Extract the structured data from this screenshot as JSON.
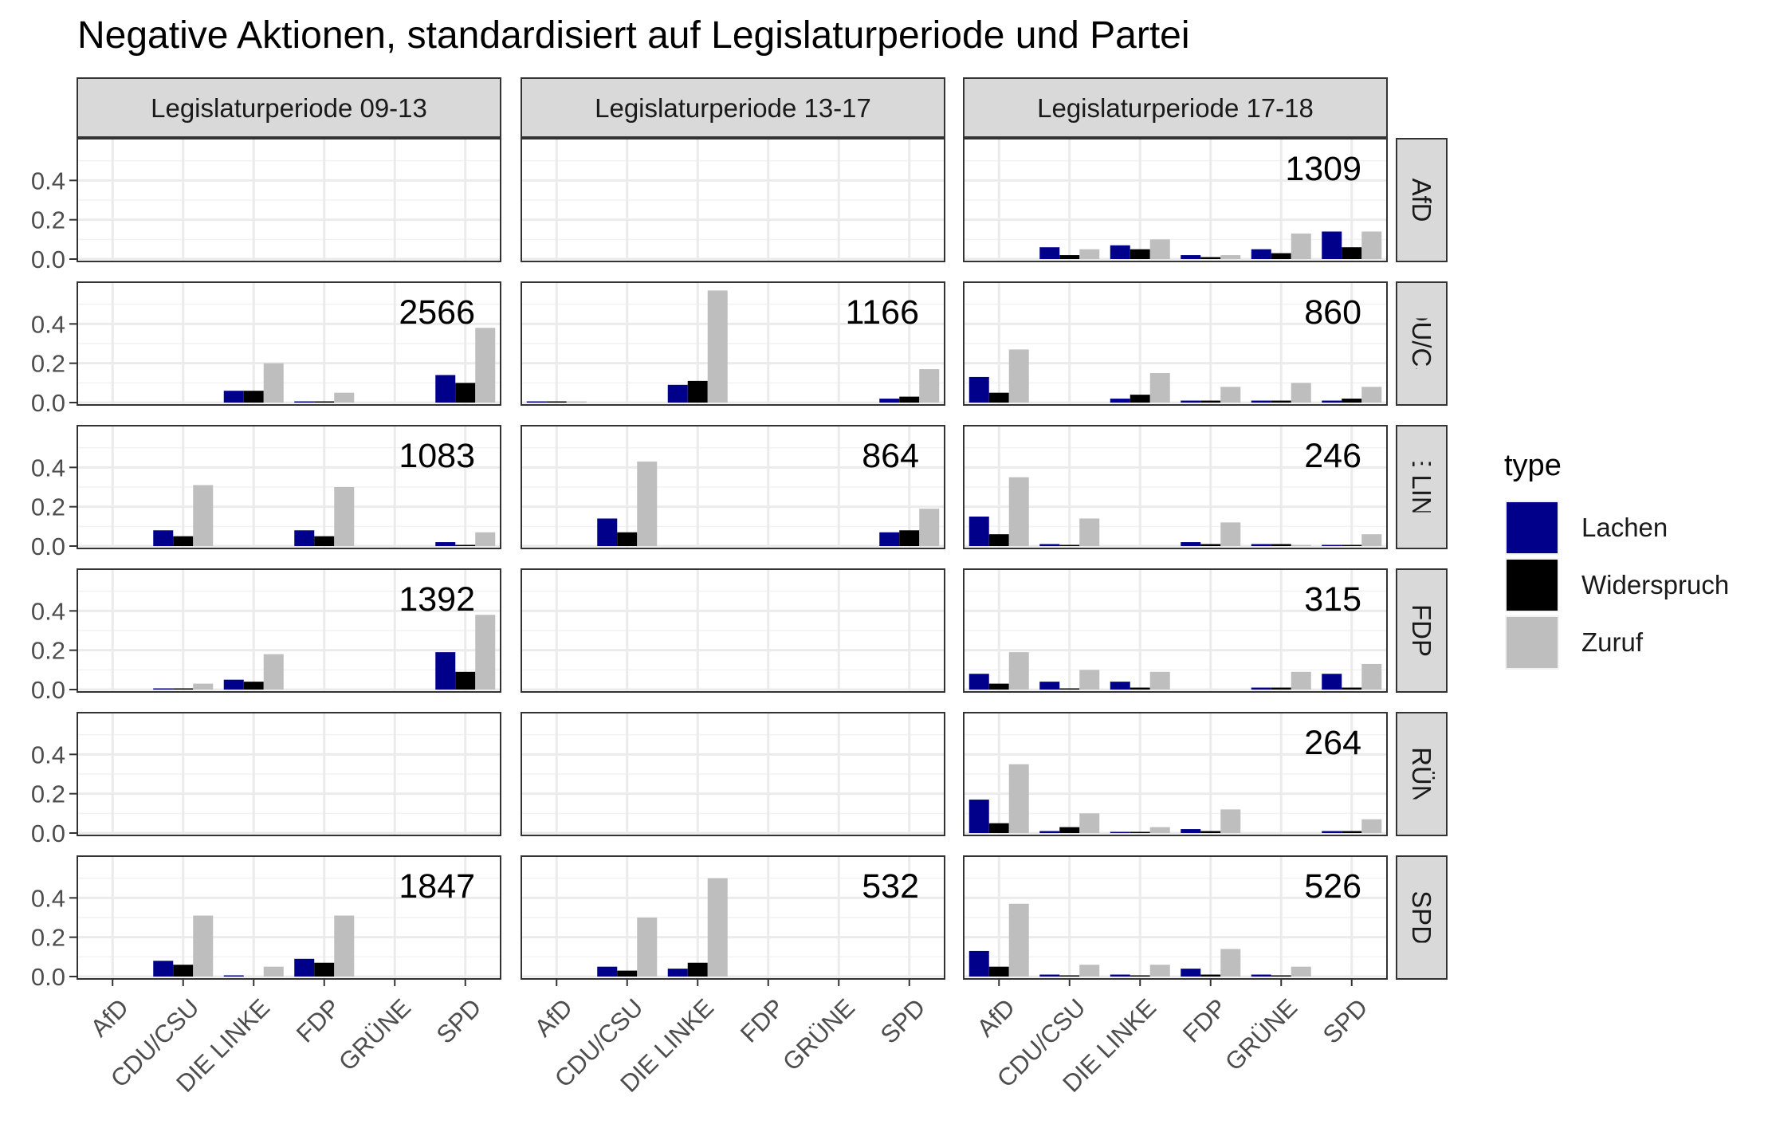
{
  "chart_data": {
    "type": "bar",
    "title": "Negative Aktionen, standardisiert auf Legislaturperiode und Partei",
    "xlabel": "",
    "ylabel": "",
    "ylim": [
      0,
      0.6
    ],
    "yticks": [
      "0.0",
      "0.2",
      "0.4"
    ],
    "grid": true,
    "legend_position": "right",
    "col_facets": [
      "Legislaturperiode 09-13",
      "Legislaturperiode 13-17",
      "Legislaturperiode 17-18"
    ],
    "row_facets": [
      "AfD",
      "CDU/CSU",
      "DIE LINKE",
      "FDP",
      "GRÜNE",
      "SPD"
    ],
    "categories": [
      "AfD",
      "CDU/CSU",
      "DIE LINKE",
      "FDP",
      "GRÜNE",
      "SPD"
    ],
    "legend": {
      "title": "type",
      "items": [
        {
          "name": "Lachen",
          "color": "#00008b"
        },
        {
          "name": "Widerspruch",
          "color": "#000000"
        },
        {
          "name": "Zuruf",
          "color": "#bebebe"
        }
      ]
    },
    "panels": [
      {
        "row": 0,
        "col": 0,
        "count": "",
        "values": [
          [
            0,
            0,
            0
          ],
          [
            0,
            0,
            0
          ],
          [
            0,
            0,
            0
          ],
          [
            0,
            0,
            0
          ],
          [
            0,
            0,
            0
          ],
          [
            0,
            0,
            0
          ]
        ]
      },
      {
        "row": 0,
        "col": 1,
        "count": "",
        "values": [
          [
            0,
            0,
            0
          ],
          [
            0,
            0,
            0
          ],
          [
            0,
            0,
            0
          ],
          [
            0,
            0,
            0
          ],
          [
            0,
            0,
            0
          ],
          [
            0,
            0,
            0
          ]
        ]
      },
      {
        "row": 0,
        "col": 2,
        "count": "1309",
        "values": [
          [
            0,
            0,
            0
          ],
          [
            0.06,
            0.02,
            0.05
          ],
          [
            0.07,
            0.05,
            0.1
          ],
          [
            0.02,
            0.01,
            0.02
          ],
          [
            0.05,
            0.03,
            0.13
          ],
          [
            0.14,
            0.06,
            0.14
          ]
        ]
      },
      {
        "row": 1,
        "col": 0,
        "count": "2566",
        "values": [
          [
            0,
            0,
            0
          ],
          [
            0,
            0,
            0
          ],
          [
            0.06,
            0.06,
            0.2
          ],
          [
            0.005,
            0.005,
            0.05
          ],
          [
            0,
            0,
            0
          ],
          [
            0.14,
            0.1,
            0.38
          ]
        ]
      },
      {
        "row": 1,
        "col": 1,
        "count": "1166",
        "values": [
          [
            0.003,
            0.003,
            0.003
          ],
          [
            0,
            0,
            0
          ],
          [
            0.09,
            0.11,
            0.57
          ],
          [
            0,
            0,
            0
          ],
          [
            0,
            0,
            0
          ],
          [
            0.02,
            0.03,
            0.17
          ]
        ]
      },
      {
        "row": 1,
        "col": 2,
        "count": "860",
        "values": [
          [
            0.13,
            0.05,
            0.27
          ],
          [
            0,
            0,
            0
          ],
          [
            0.02,
            0.04,
            0.15
          ],
          [
            0.01,
            0.01,
            0.08
          ],
          [
            0.01,
            0.01,
            0.1
          ],
          [
            0.01,
            0.02,
            0.08
          ]
        ]
      },
      {
        "row": 2,
        "col": 0,
        "count": "1083",
        "values": [
          [
            0,
            0,
            0
          ],
          [
            0.08,
            0.05,
            0.31
          ],
          [
            0,
            0,
            0
          ],
          [
            0.08,
            0.05,
            0.3
          ],
          [
            0,
            0,
            0
          ],
          [
            0.02,
            0.005,
            0.07
          ]
        ]
      },
      {
        "row": 2,
        "col": 1,
        "count": "864",
        "values": [
          [
            0,
            0,
            0
          ],
          [
            0.14,
            0.07,
            0.43
          ],
          [
            0,
            0,
            0
          ],
          [
            0,
            0,
            0
          ],
          [
            0,
            0,
            0
          ],
          [
            0.07,
            0.08,
            0.19
          ]
        ]
      },
      {
        "row": 2,
        "col": 2,
        "count": "246",
        "values": [
          [
            0.15,
            0.06,
            0.35
          ],
          [
            0.01,
            0.005,
            0.14
          ],
          [
            0,
            0,
            0
          ],
          [
            0.02,
            0.01,
            0.12
          ],
          [
            0.01,
            0.01,
            0.003
          ],
          [
            0.005,
            0.005,
            0.06
          ]
        ]
      },
      {
        "row": 3,
        "col": 0,
        "count": "1392",
        "values": [
          [
            0,
            0,
            0
          ],
          [
            0.005,
            0.005,
            0.03
          ],
          [
            0.05,
            0.04,
            0.18
          ],
          [
            0,
            0,
            0
          ],
          [
            0,
            0,
            0
          ],
          [
            0.19,
            0.09,
            0.38
          ]
        ]
      },
      {
        "row": 3,
        "col": 1,
        "count": "",
        "values": [
          [
            0,
            0,
            0
          ],
          [
            0,
            0,
            0
          ],
          [
            0,
            0,
            0
          ],
          [
            0,
            0,
            0
          ],
          [
            0,
            0,
            0
          ],
          [
            0,
            0,
            0
          ]
        ]
      },
      {
        "row": 3,
        "col": 2,
        "count": "315",
        "values": [
          [
            0.08,
            0.03,
            0.19
          ],
          [
            0.04,
            0.005,
            0.1
          ],
          [
            0.04,
            0.01,
            0.09
          ],
          [
            0,
            0,
            0
          ],
          [
            0.01,
            0.01,
            0.09
          ],
          [
            0.08,
            0.01,
            0.13
          ]
        ]
      },
      {
        "row": 4,
        "col": 0,
        "count": "",
        "values": [
          [
            0,
            0,
            0
          ],
          [
            0,
            0,
            0
          ],
          [
            0,
            0,
            0
          ],
          [
            0,
            0,
            0
          ],
          [
            0,
            0,
            0
          ],
          [
            0,
            0,
            0
          ]
        ]
      },
      {
        "row": 4,
        "col": 1,
        "count": "",
        "values": [
          [
            0,
            0,
            0
          ],
          [
            0,
            0,
            0
          ],
          [
            0,
            0,
            0
          ],
          [
            0,
            0,
            0
          ],
          [
            0,
            0,
            0
          ],
          [
            0,
            0,
            0
          ]
        ]
      },
      {
        "row": 4,
        "col": 2,
        "count": "264",
        "values": [
          [
            0.17,
            0.05,
            0.35
          ],
          [
            0.01,
            0.03,
            0.1
          ],
          [
            0.005,
            0.005,
            0.03
          ],
          [
            0.02,
            0.01,
            0.12
          ],
          [
            0,
            0,
            0
          ],
          [
            0.01,
            0.01,
            0.07
          ]
        ]
      },
      {
        "row": 5,
        "col": 0,
        "count": "1847",
        "values": [
          [
            0,
            0,
            0
          ],
          [
            0.08,
            0.06,
            0.31
          ],
          [
            0.005,
            0,
            0.05
          ],
          [
            0.09,
            0.07,
            0.31
          ],
          [
            0,
            0,
            0
          ],
          [
            0,
            0,
            0
          ]
        ]
      },
      {
        "row": 5,
        "col": 1,
        "count": "532",
        "values": [
          [
            0,
            0,
            0
          ],
          [
            0.05,
            0.03,
            0.3
          ],
          [
            0.04,
            0.07,
            0.5
          ],
          [
            0,
            0,
            0
          ],
          [
            0,
            0,
            0
          ],
          [
            0,
            0,
            0
          ]
        ]
      },
      {
        "row": 5,
        "col": 2,
        "count": "526",
        "values": [
          [
            0.13,
            0.05,
            0.37
          ],
          [
            0.01,
            0.005,
            0.06
          ],
          [
            0.01,
            0.005,
            0.06
          ],
          [
            0.04,
            0.01,
            0.14
          ],
          [
            0.01,
            0.005,
            0.05
          ],
          [
            0,
            0,
            0
          ]
        ]
      }
    ]
  }
}
